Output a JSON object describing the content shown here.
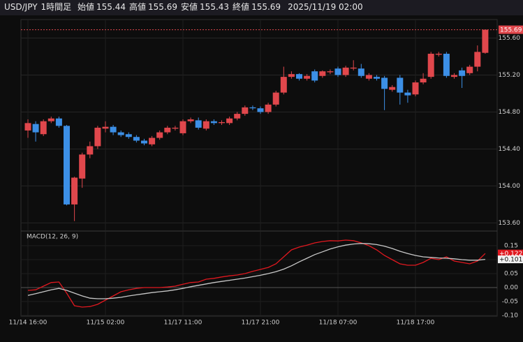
{
  "header": {
    "symbol": "USD/JPY",
    "interval": "1時間足",
    "fields": [
      {
        "label": "始値",
        "value": 155.44
      },
      {
        "label": "高値",
        "value": 155.69
      },
      {
        "label": "安値",
        "value": 155.43
      },
      {
        "label": "終値",
        "value": 155.69
      }
    ],
    "datetime": "2025/11/19 02:00"
  },
  "chart_data": [
    {
      "type": "candlestick",
      "up_color": "#e0474c",
      "down_color": "#3c8fe6",
      "categories": [
        "11/14 16:00",
        null,
        null,
        null,
        null,
        null,
        null,
        null,
        null,
        null,
        "11/15 02:00",
        null,
        null,
        null,
        null,
        null,
        null,
        null,
        null,
        null,
        "11/17 11:00",
        null,
        null,
        null,
        null,
        null,
        null,
        null,
        null,
        null,
        "11/17 21:00",
        null,
        null,
        null,
        null,
        null,
        null,
        null,
        null,
        null,
        "11/18 07:00",
        null,
        null,
        null,
        null,
        null,
        null,
        null,
        null,
        null,
        "11/18 17:00",
        null,
        null,
        null,
        null,
        null,
        null,
        null,
        null,
        null
      ],
      "open": [
        154.6,
        154.67,
        154.56,
        154.7,
        154.73,
        154.65,
        153.8,
        154.08,
        154.34,
        154.43,
        154.62,
        154.64,
        154.58,
        154.56,
        154.53,
        154.49,
        154.45,
        154.52,
        154.58,
        154.62,
        154.57,
        154.7,
        154.71,
        154.62,
        154.7,
        154.68,
        154.68,
        154.73,
        154.78,
        154.85,
        154.84,
        154.8,
        154.88,
        155.01,
        155.18,
        155.21,
        155.16,
        155.24,
        155.19,
        155.23,
        155.27,
        155.2,
        155.27,
        155.27,
        155.16,
        155.18,
        155.17,
        155.04,
        155.17,
        155.01,
        154.99,
        155.12,
        155.18,
        155.42,
        155.43,
        155.18,
        155.25,
        155.22,
        155.29,
        155.44
      ],
      "high": [
        154.72,
        154.7,
        154.72,
        154.75,
        154.75,
        154.66,
        154.1,
        154.36,
        154.48,
        154.65,
        154.7,
        154.66,
        154.6,
        154.58,
        154.55,
        154.51,
        154.54,
        154.6,
        154.65,
        154.65,
        154.72,
        154.74,
        154.74,
        154.72,
        154.72,
        154.71,
        154.75,
        154.8,
        154.87,
        154.87,
        154.86,
        154.9,
        155.03,
        155.29,
        155.24,
        155.22,
        155.21,
        155.26,
        155.25,
        155.26,
        155.29,
        155.3,
        155.36,
        155.32,
        155.22,
        155.2,
        155.19,
        155.09,
        155.2,
        155.04,
        155.14,
        155.22,
        155.45,
        155.45,
        155.45,
        155.22,
        155.28,
        155.31,
        155.52,
        155.69
      ],
      "low": [
        154.52,
        154.48,
        154.54,
        154.68,
        154.63,
        153.79,
        153.62,
        153.98,
        154.3,
        154.4,
        154.58,
        154.55,
        154.53,
        154.51,
        154.47,
        154.44,
        154.43,
        154.5,
        154.56,
        154.6,
        154.55,
        154.68,
        154.61,
        154.6,
        154.66,
        154.66,
        154.66,
        154.71,
        154.76,
        154.82,
        154.78,
        154.78,
        154.86,
        154.99,
        155.16,
        155.14,
        155.14,
        155.12,
        155.17,
        155.21,
        155.18,
        155.18,
        155.25,
        155.17,
        155.14,
        155.14,
        154.82,
        155.02,
        154.88,
        154.9,
        154.97,
        155.1,
        155.16,
        155.4,
        155.17,
        155.16,
        155.06,
        155.2,
        155.24,
        155.43
      ],
      "close": [
        154.68,
        154.58,
        154.7,
        154.73,
        154.65,
        153.8,
        154.09,
        154.34,
        154.43,
        154.63,
        154.64,
        154.58,
        154.55,
        154.53,
        154.49,
        154.46,
        154.52,
        154.58,
        154.63,
        154.63,
        154.7,
        154.72,
        154.63,
        154.7,
        154.68,
        154.69,
        154.73,
        154.78,
        154.85,
        154.84,
        154.8,
        154.88,
        155.01,
        155.18,
        155.21,
        155.16,
        155.19,
        155.14,
        155.24,
        155.24,
        155.2,
        155.28,
        155.28,
        155.19,
        155.2,
        155.16,
        155.05,
        155.07,
        155.01,
        154.98,
        155.12,
        155.16,
        155.43,
        155.43,
        155.19,
        155.2,
        155.19,
        155.29,
        155.45,
        155.69
      ],
      "ylim": [
        153.52,
        155.8
      ],
      "yticks": [
        {
          "value": 155.6,
          "label": "155.60"
        },
        {
          "value": 155.2,
          "label": "155.20"
        },
        {
          "value": 154.8,
          "label": "154.80"
        },
        {
          "value": 154.4,
          "label": "154.40"
        },
        {
          "value": 154.0,
          "label": "154.00"
        },
        {
          "value": 153.6,
          "label": "153.60"
        }
      ],
      "grid": true
    },
    {
      "type": "line",
      "title": "MACD(12, 26, 9)",
      "series": [
        {
          "color": "#e0181f",
          "values": [
            -0.01,
            -0.008,
            0.005,
            0.018,
            0.02,
            -0.02,
            -0.065,
            -0.07,
            -0.068,
            -0.06,
            -0.045,
            -0.03,
            -0.015,
            -0.008,
            -0.003,
            0.0,
            0.0,
            0.0,
            0.002,
            0.005,
            0.012,
            0.018,
            0.02,
            0.03,
            0.033,
            0.038,
            0.042,
            0.045,
            0.05,
            0.058,
            0.065,
            0.072,
            0.085,
            0.11,
            0.135,
            0.145,
            0.152,
            0.16,
            0.165,
            0.168,
            0.167,
            0.17,
            0.168,
            0.16,
            0.15,
            0.135,
            0.115,
            0.1,
            0.085,
            0.08,
            0.08,
            0.09,
            0.105,
            0.1,
            0.11,
            0.095,
            0.09,
            0.085,
            0.095,
            0.122
          ],
          "value_labels": [
            null,
            null,
            null,
            null,
            null,
            null,
            null,
            null,
            null,
            null,
            null,
            null,
            null,
            null,
            null,
            null,
            null,
            null,
            null,
            null,
            null,
            null,
            null,
            null,
            null,
            null,
            null,
            null,
            null,
            null,
            null,
            null,
            null,
            null,
            null,
            null,
            null,
            null,
            null,
            null,
            null,
            null,
            null,
            null,
            null,
            null,
            null,
            null,
            null,
            null,
            null,
            null,
            null,
            null,
            null,
            null,
            null,
            null,
            null,
            "+0.122"
          ]
        },
        {
          "color": "#c8c8c8",
          "values": [
            -0.028,
            -0.022,
            -0.015,
            -0.008,
            -0.003,
            -0.01,
            -0.02,
            -0.03,
            -0.038,
            -0.04,
            -0.04,
            -0.038,
            -0.035,
            -0.03,
            -0.026,
            -0.022,
            -0.018,
            -0.015,
            -0.012,
            -0.008,
            -0.003,
            0.003,
            0.008,
            0.013,
            0.018,
            0.022,
            0.026,
            0.03,
            0.034,
            0.039,
            0.044,
            0.05,
            0.057,
            0.066,
            0.078,
            0.092,
            0.105,
            0.118,
            0.128,
            0.138,
            0.146,
            0.152,
            0.156,
            0.158,
            0.157,
            0.154,
            0.148,
            0.14,
            0.13,
            0.122,
            0.115,
            0.11,
            0.108,
            0.106,
            0.105,
            0.103,
            0.1,
            0.098,
            0.098,
            0.101
          ],
          "value_labels": [
            null,
            null,
            null,
            null,
            null,
            null,
            null,
            null,
            null,
            null,
            null,
            null,
            null,
            null,
            null,
            null,
            null,
            null,
            null,
            null,
            null,
            null,
            null,
            null,
            null,
            null,
            null,
            null,
            null,
            null,
            null,
            null,
            null,
            null,
            null,
            null,
            null,
            null,
            null,
            null,
            null,
            null,
            null,
            null,
            null,
            null,
            null,
            null,
            null,
            null,
            null,
            null,
            null,
            null,
            null,
            null,
            null,
            null,
            null,
            "+0.101"
          ]
        }
      ],
      "ylim": [
        -0.1,
        0.2
      ],
      "yticks": [
        0.15,
        {
          "value": 0.1,
          "label": "0.10"
        },
        0.05,
        {
          "value": 0,
          "label": "0.00"
        },
        -0.05,
        {
          "value": -0.1,
          "label": "-0.10"
        }
      ],
      "grid": true
    }
  ]
}
